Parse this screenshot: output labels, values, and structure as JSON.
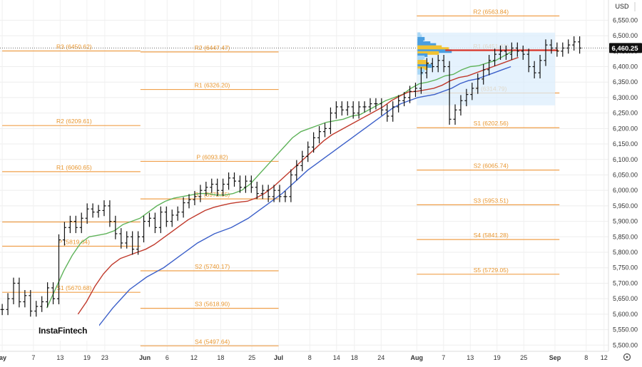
{
  "chart_data": {
    "type": "line",
    "title": "",
    "currency": "USD",
    "current_price": "6,460.25",
    "ylim": [
      5480,
      6590
    ],
    "yticks": [
      "6,550.00",
      "6,500.00",
      "6,450.00",
      "6,400.00",
      "6,350.00",
      "6,300.00",
      "6,250.00",
      "6,200.00",
      "6,150.00",
      "6,100.00",
      "6,050.00",
      "6,000.00",
      "5,950.00",
      "5,900.00",
      "5,850.00",
      "5,800.00",
      "5,750.00",
      "5,700.00",
      "5,650.00",
      "5,600.00",
      "5,550.00",
      "5,500.00"
    ],
    "ytick_values": [
      6550,
      6500,
      6450,
      6400,
      6350,
      6300,
      6250,
      6200,
      6150,
      6100,
      6050,
      6000,
      5950,
      5900,
      5850,
      5800,
      5750,
      5700,
      5650,
      5600,
      5550,
      5500
    ],
    "xticks": [
      {
        "label": "ay",
        "x": 0
      },
      {
        "label": "7",
        "x": 7
      },
      {
        "label": "13",
        "x": 13
      },
      {
        "label": "19",
        "x": 19
      },
      {
        "label": "23",
        "x": 23
      },
      {
        "label": "Jun",
        "x": 32
      },
      {
        "label": "6",
        "x": 37
      },
      {
        "label": "12",
        "x": 43
      },
      {
        "label": "18",
        "x": 49
      },
      {
        "label": "25",
        "x": 56
      },
      {
        "label": "Jul",
        "x": 62
      },
      {
        "label": "8",
        "x": 69
      },
      {
        "label": "14",
        "x": 75
      },
      {
        "label": "18",
        "x": 79
      },
      {
        "label": "24",
        "x": 85
      },
      {
        "label": "Aug",
        "x": 93
      },
      {
        "label": "7",
        "x": 99
      },
      {
        "label": "13",
        "x": 105
      },
      {
        "label": "19",
        "x": 111
      },
      {
        "label": "25",
        "x": 117
      },
      {
        "label": "Sep",
        "x": 124
      },
      {
        "label": "8",
        "x": 131
      },
      {
        "label": "12",
        "x": 135
      }
    ],
    "xlim": [
      -0.5,
      137.6
    ],
    "pivot_levels": [
      {
        "label": "R2 (6563.84)",
        "value": 6563.84,
        "from": 93,
        "to": 125
      },
      {
        "label": "R3 (6450.62)",
        "value": 6450.62,
        "from": 0,
        "to": 31
      },
      {
        "label": "R2 (6447.47)",
        "value": 6447.47,
        "from": 31,
        "to": 62
      },
      {
        "label": "R1 (6451.61)",
        "value": 6451.61,
        "from": 93,
        "to": 125
      },
      {
        "label": "R1 (6326.20)",
        "value": 6326.2,
        "from": 31,
        "to": 62
      },
      {
        "label": "P (6314.79)",
        "value": 6314.79,
        "from": 93,
        "to": 125
      },
      {
        "label": "R2 (6209.61)",
        "value": 6209.61,
        "from": 0,
        "to": 31
      },
      {
        "label": "S1 (6202.56)",
        "value": 6202.56,
        "from": 93,
        "to": 125
      },
      {
        "label": "P (6093.82)",
        "value": 6093.82,
        "from": 31,
        "to": 62
      },
      {
        "label": "R1 (6060.65)",
        "value": 6060.65,
        "from": 0,
        "to": 31
      },
      {
        "label": "S2 (6065.74)",
        "value": 6065.74,
        "from": 93,
        "to": 125
      },
      {
        "label": "S1 (5972.55)",
        "value": 5972.55,
        "from": 31,
        "to": 62
      },
      {
        "label": "S3 (5953.51)",
        "value": 5953.51,
        "from": 93,
        "to": 125
      },
      {
        "label": "P (5819.64)",
        "value": 5819.64,
        "from": 0,
        "to": 31
      },
      {
        "label": "S4 (5841.28)",
        "value": 5841.28,
        "from": 93,
        "to": 125
      },
      {
        "label": "S2 (5740.17)",
        "value": 5740.17,
        "from": 31,
        "to": 62
      },
      {
        "label": "S5 (5729.05)",
        "value": 5729.05,
        "from": 93,
        "to": 125
      },
      {
        "label": "S1 (5670.68)",
        "value": 5670.68,
        "from": 0,
        "to": 31
      },
      {
        "label": "S3 (5618.90)",
        "value": 5618.9,
        "from": 31,
        "to": 62
      },
      {
        "label": "S4 (5497.64)",
        "value": 5497.64,
        "from": 31,
        "to": 62
      }
    ],
    "extra_level": {
      "label": "",
      "value": 5898,
      "from": 0,
      "to": 31
    },
    "daily_closes": [
      5615,
      5650,
      5700,
      5640,
      5660,
      5610,
      5625,
      5640,
      5685,
      5650,
      5840,
      5880,
      5900,
      5880,
      5910,
      5940,
      5930,
      5935,
      5950,
      5900,
      5860,
      5830,
      5850,
      5810,
      5850,
      5900,
      5910,
      5880,
      5930,
      5900,
      5920,
      5930,
      5960,
      5970,
      5980,
      6000,
      6010,
      6020,
      6000,
      6020,
      6040,
      6030,
      6010,
      6030,
      6010,
      5990,
      6000,
      5980,
      6000,
      5980,
      5980,
      6050,
      6080,
      6110,
      6140,
      6170,
      6190,
      6200,
      6250,
      6270,
      6260,
      6270,
      6250,
      6270,
      6270,
      6280,
      6280,
      6260,
      6240,
      6270,
      6290,
      6300,
      6320,
      6330,
      6380,
      6410,
      6400,
      6420,
      6400,
      6230,
      6260,
      6290,
      6310,
      6330,
      6360,
      6390,
      6420,
      6440,
      6450,
      6440,
      6460,
      6450,
      6440,
      6400,
      6380,
      6420,
      6470,
      6460,
      6450,
      6460,
      6470,
      6480,
      6460
    ],
    "ma_series": [
      {
        "name": "short MA",
        "color": "#5fb35a",
        "x_start": 10,
        "values": [
          5620,
          5680,
          5740,
          5790,
          5830,
          5850,
          5855,
          5860,
          5870,
          5890,
          5900,
          5910,
          5930,
          5950,
          5965,
          5975,
          5980,
          5985,
          5990,
          5990,
          5985,
          5985,
          5990,
          6000,
          6020,
          6050,
          6080,
          6110,
          6140,
          6170,
          6190,
          6200,
          6210,
          6220,
          6225,
          6230,
          6240,
          6245,
          6260,
          6275,
          6290,
          6300,
          6310,
          6330,
          6345,
          6350,
          6358,
          6370,
          6375,
          6390,
          6400,
          6403,
          6412,
          6420,
          6435,
          6450
        ]
      },
      {
        "name": "mid MA",
        "color": "#c0392b",
        "x_start": 17,
        "values": [
          5600,
          5640,
          5690,
          5730,
          5760,
          5780,
          5790,
          5800,
          5810,
          5825,
          5845,
          5865,
          5885,
          5905,
          5920,
          5935,
          5945,
          5952,
          5958,
          5962,
          5965,
          5975,
          5990,
          6010,
          6035,
          6060,
          6085,
          6110,
          6135,
          6160,
          6180,
          6195,
          6210,
          6225,
          6240,
          6255,
          6270,
          6290,
          6305,
          6318,
          6320,
          6325,
          6330,
          6340,
          6355,
          6365,
          6370,
          6380,
          6390,
          6400,
          6410,
          6420,
          6430
        ]
      },
      {
        "name": "long MA",
        "color": "#3b5fc9",
        "x_start": 21,
        "values": [
          5550,
          5585,
          5620,
          5650,
          5680,
          5700,
          5720,
          5735,
          5750,
          5770,
          5790,
          5810,
          5830,
          5845,
          5860,
          5870,
          5880,
          5895,
          5910,
          5930,
          5950,
          5970,
          5990,
          6015,
          6040,
          6065,
          6085,
          6105,
          6125,
          6145,
          6165,
          6185,
          6205,
          6225,
          6245,
          6265,
          6280,
          6290,
          6300,
          6305,
          6310,
          6320,
          6330,
          6345,
          6355,
          6360,
          6370,
          6380,
          6390,
          6400
        ]
      }
    ],
    "volume_profile_box": {
      "x_from": 93,
      "x_to": 124,
      "y_from": 6275,
      "y_to": 6510
    },
    "point_of_control": 6453,
    "watermark_text": "InstaFintech"
  }
}
